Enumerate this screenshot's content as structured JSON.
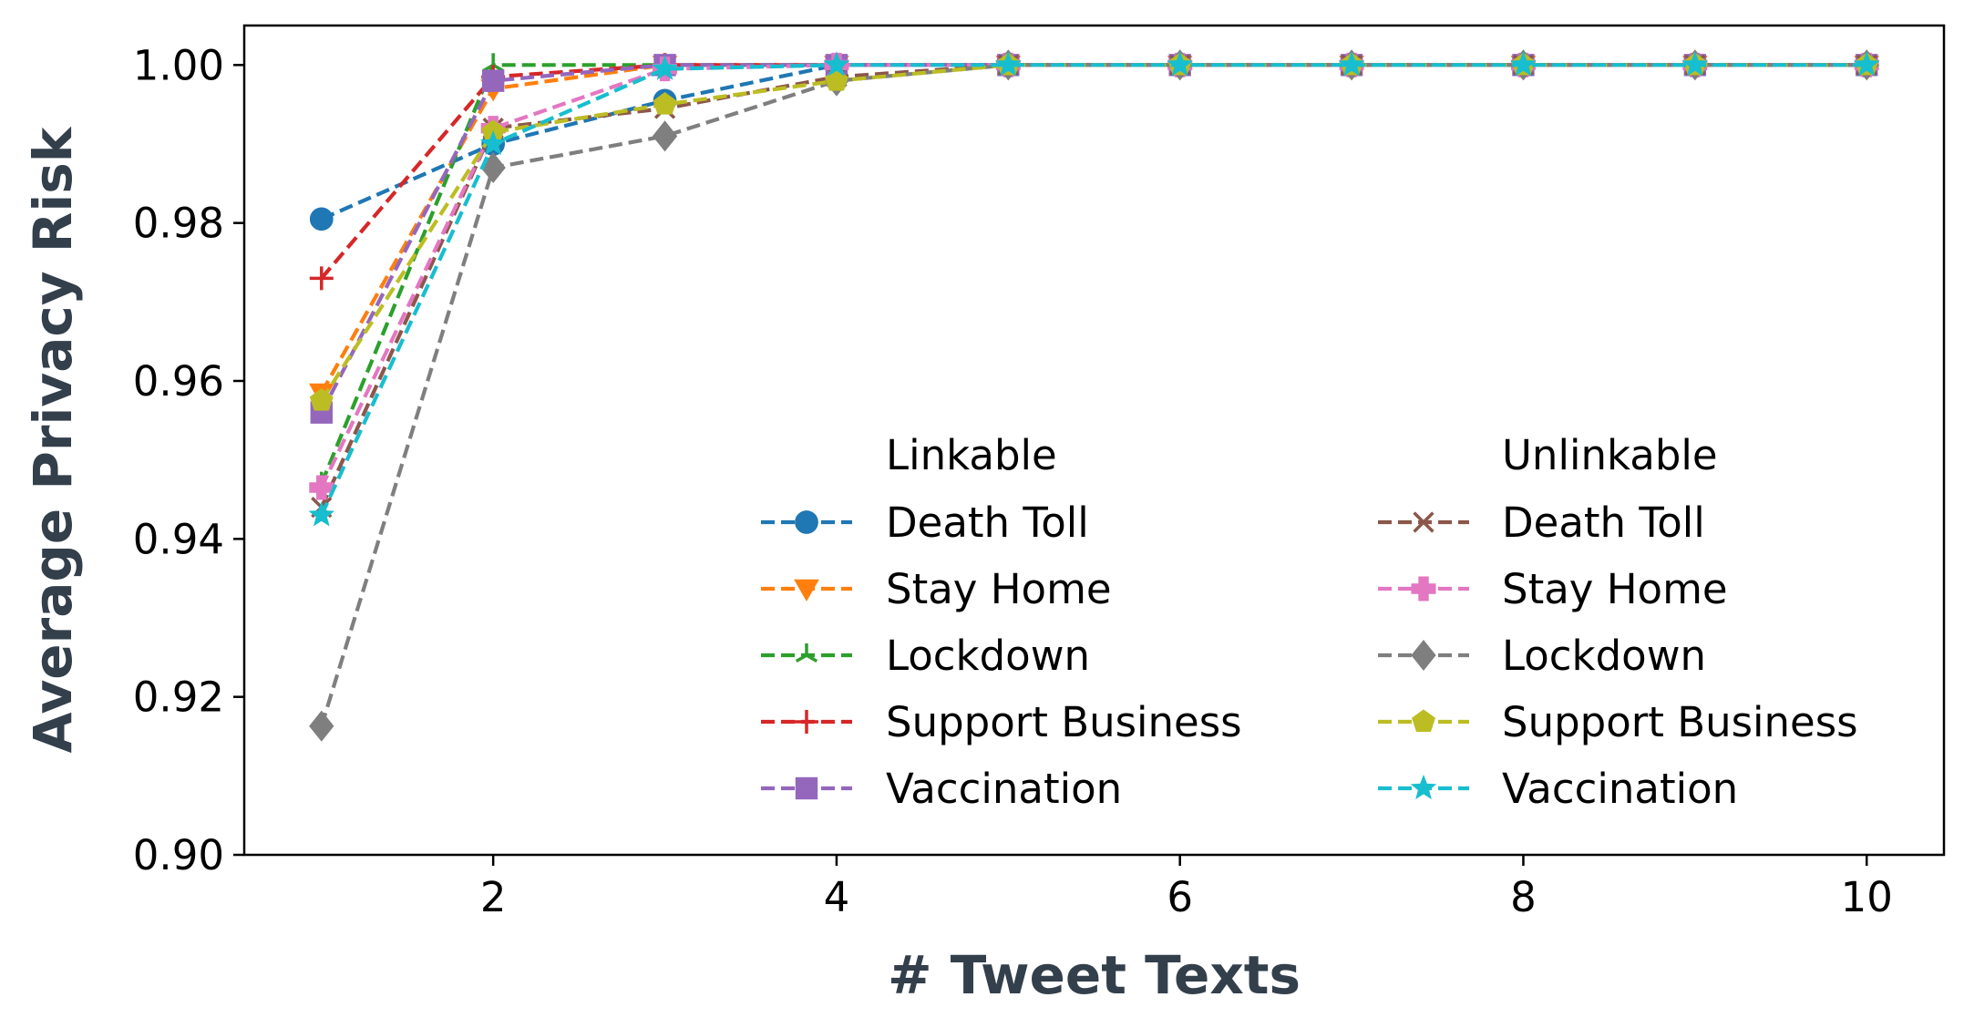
{
  "chart_data": {
    "type": "line",
    "xlabel": "# Tweet Texts",
    "ylabel": "Average Privacy Risk",
    "xlim": [
      0.55,
      10.45
    ],
    "ylim": [
      0.9,
      1.005
    ],
    "xticks": [
      2,
      4,
      6,
      8,
      10
    ],
    "yticks": [
      0.9,
      0.92,
      0.94,
      0.96,
      0.98,
      1.0
    ],
    "ytick_labels": [
      "0.90",
      "0.92",
      "0.94",
      "0.96",
      "0.98",
      "1.00"
    ],
    "xtick_labels": [
      "2",
      "4",
      "6",
      "8",
      "10"
    ],
    "grid": false,
    "legend_placement": "lower-right",
    "legend_headers": [
      "Linkable",
      "Unlinkable"
    ],
    "x": [
      1,
      2,
      3,
      4,
      5,
      6,
      7,
      8,
      9,
      10
    ],
    "series": [
      {
        "name": "Death Toll",
        "group": "Linkable",
        "color": "#1f77b4",
        "marker": "circle",
        "values": [
          0.9805,
          0.99,
          0.9955,
          1.0,
          1.0,
          1.0,
          1.0,
          1.0,
          1.0,
          1.0
        ]
      },
      {
        "name": "Stay Home",
        "group": "Linkable",
        "color": "#ff7f0e",
        "marker": "triangle-down",
        "values": [
          0.9585,
          0.997,
          1.0,
          1.0,
          1.0,
          1.0,
          1.0,
          1.0,
          1.0,
          1.0
        ]
      },
      {
        "name": "Lockdown",
        "group": "Linkable",
        "color": "#2ca02c",
        "marker": "tri-star",
        "values": [
          0.947,
          1.0,
          1.0,
          1.0,
          1.0,
          1.0,
          1.0,
          1.0,
          1.0,
          1.0
        ]
      },
      {
        "name": "Support Business",
        "group": "Linkable",
        "color": "#d62728",
        "marker": "plus",
        "values": [
          0.973,
          0.9985,
          1.0,
          1.0,
          1.0,
          1.0,
          1.0,
          1.0,
          1.0,
          1.0
        ]
      },
      {
        "name": "Vaccination",
        "group": "Linkable",
        "color": "#9467bd",
        "marker": "square",
        "values": [
          0.956,
          0.998,
          1.0,
          1.0,
          1.0,
          1.0,
          1.0,
          1.0,
          1.0,
          1.0
        ]
      },
      {
        "name": "Death Toll",
        "group": "Unlinkable",
        "color": "#8c564b",
        "marker": "x",
        "values": [
          0.944,
          0.992,
          0.9945,
          0.9985,
          1.0,
          1.0,
          1.0,
          1.0,
          1.0,
          1.0
        ]
      },
      {
        "name": "Stay Home",
        "group": "Unlinkable",
        "color": "#e377c2",
        "marker": "plus-filled",
        "values": [
          0.9465,
          0.992,
          0.9995,
          1.0,
          1.0,
          1.0,
          1.0,
          1.0,
          1.0,
          1.0
        ]
      },
      {
        "name": "Lockdown",
        "group": "Unlinkable",
        "color": "#7f7f7f",
        "marker": "diamond",
        "values": [
          0.9163,
          0.987,
          0.991,
          0.998,
          1.0,
          1.0,
          1.0,
          1.0,
          1.0,
          1.0
        ]
      },
      {
        "name": "Support Business",
        "group": "Unlinkable",
        "color": "#bcbd22",
        "marker": "pentagon",
        "values": [
          0.9575,
          0.9915,
          0.995,
          0.998,
          1.0,
          1.0,
          1.0,
          1.0,
          1.0,
          1.0
        ]
      },
      {
        "name": "Vaccination",
        "group": "Unlinkable",
        "color": "#17becf",
        "marker": "star",
        "values": [
          0.943,
          0.99,
          0.9995,
          1.0,
          1.0,
          1.0,
          1.0,
          1.0,
          1.0,
          1.0
        ]
      }
    ]
  }
}
